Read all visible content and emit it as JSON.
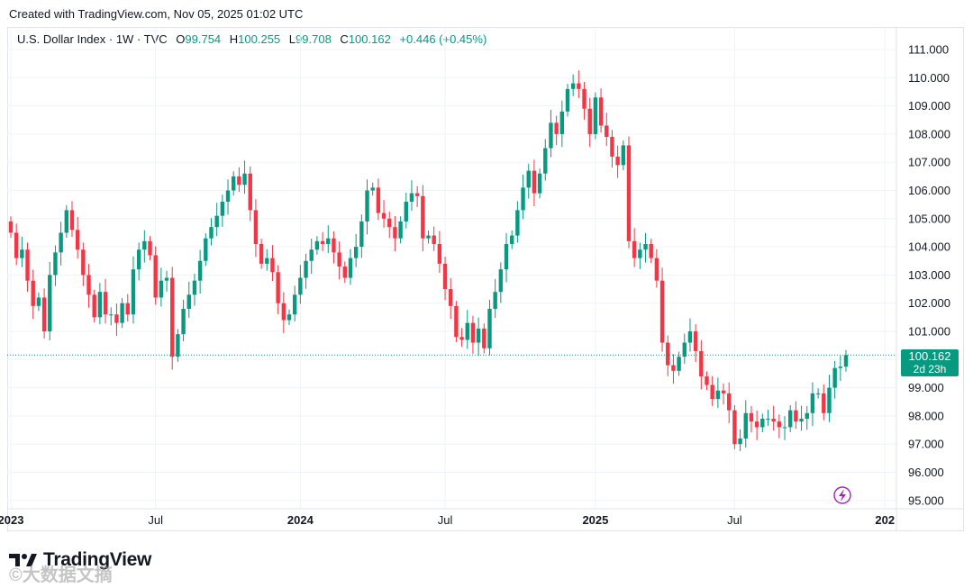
{
  "header": {
    "created": "Created with TradingView.com, Nov 05, 2025 01:02 UTC"
  },
  "legend": {
    "symbol": "U.S. Dollar Index · 1W · TVC",
    "o_label": "O",
    "o": "99.754",
    "h_label": "H",
    "h": "100.255",
    "l_label": "L",
    "l": "99.708",
    "c_label": "C",
    "c": "100.162",
    "change": "+0.446 (+0.45%)"
  },
  "price_tag": {
    "price": "100.162",
    "countdown": "2d 23h"
  },
  "brand": {
    "name": "TradingView",
    "watermark": "©大数据文摘"
  },
  "colors": {
    "up": "#089981",
    "down": "#f23645",
    "grid": "#f0f3fa",
    "text": "#131722",
    "badge": "#9c27b0"
  },
  "chart_data": {
    "type": "candlestick",
    "title": "U.S. Dollar Index · 1W · TVC",
    "ylim": [
      94.5,
      111.5
    ],
    "y_ticks": [
      "111.000",
      "110.000",
      "109.000",
      "108.000",
      "107.000",
      "106.000",
      "105.000",
      "104.000",
      "103.000",
      "102.000",
      "101.000",
      "100.000",
      "99.000",
      "98.000",
      "97.000",
      "96.000",
      "95.000"
    ],
    "x_ticks": [
      {
        "label": "2023",
        "bold": true,
        "i": 0
      },
      {
        "label": "Jul",
        "bold": false,
        "i": 26
      },
      {
        "label": "2024",
        "bold": true,
        "i": 52
      },
      {
        "label": "Jul",
        "bold": false,
        "i": 78
      },
      {
        "label": "2025",
        "bold": true,
        "i": 105
      },
      {
        "label": "Jul",
        "bold": false,
        "i": 130
      },
      {
        "label": "202",
        "bold": true,
        "i": 157
      }
    ],
    "last_price": 100.162,
    "series_closes": [
      104.5,
      103.6,
      103.9,
      102.8,
      101.9,
      102.2,
      101.0,
      103.0,
      103.8,
      104.5,
      105.3,
      104.6,
      103.9,
      103.0,
      102.3,
      101.5,
      102.4,
      101.6,
      101.6,
      101.3,
      102.0,
      101.6,
      103.2,
      103.9,
      104.2,
      103.7,
      102.2,
      102.8,
      102.9,
      100.1,
      100.9,
      101.8,
      102.3,
      102.8,
      103.5,
      104.3,
      104.7,
      105.1,
      105.6,
      106.0,
      106.5,
      106.2,
      106.6,
      105.3,
      104.1,
      103.4,
      103.6,
      103.1,
      102.0,
      101.4,
      101.6,
      102.3,
      102.9,
      103.5,
      103.9,
      104.2,
      104.1,
      104.3,
      103.8,
      103.3,
      102.9,
      103.6,
      104.0,
      104.9,
      106.0,
      106.1,
      105.2,
      105.0,
      104.7,
      104.3,
      104.9,
      105.6,
      105.9,
      105.8,
      104.3,
      104.4,
      104.1,
      103.4,
      102.5,
      101.9,
      100.8,
      100.7,
      101.3,
      100.6,
      101.1,
      100.4,
      101.8,
      102.4,
      103.2,
      104.1,
      104.4,
      105.3,
      106.1,
      106.7,
      105.9,
      106.6,
      107.5,
      108.4,
      108.0,
      108.8,
      109.6,
      109.8,
      109.6,
      108.9,
      108.0,
      109.3,
      108.3,
      107.9,
      107.2,
      106.9,
      107.6,
      104.2,
      103.6,
      103.9,
      104.1,
      103.6,
      102.8,
      100.6,
      99.8,
      99.6,
      100.1,
      100.6,
      101.0,
      100.3,
      99.4,
      99.1,
      98.6,
      98.9,
      98.8,
      98.2,
      97.0,
      97.2,
      98.1,
      97.8,
      97.6,
      97.9,
      97.9,
      97.8,
      97.6,
      97.6,
      98.2,
      97.8,
      97.9,
      98.1,
      98.8,
      98.8,
      98.1,
      99.0,
      99.7,
      99.75,
      100.16
    ]
  }
}
